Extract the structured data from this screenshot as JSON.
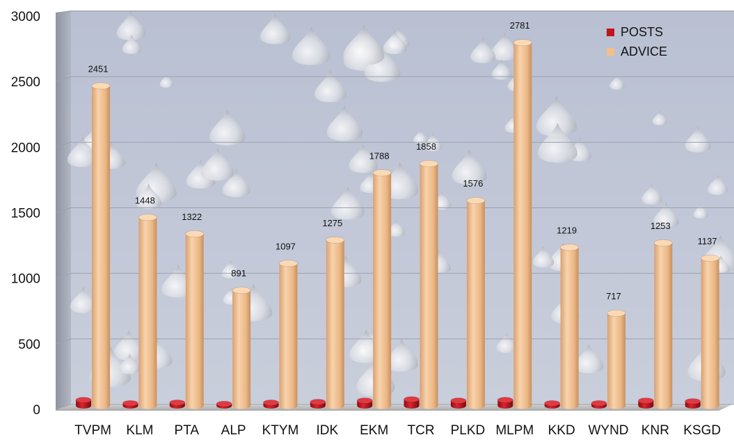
{
  "chart_data": {
    "type": "bar",
    "style": "3d-cylinder",
    "categories": [
      "TVPM",
      "KLM",
      "PTA",
      "ALP",
      "KTYM",
      "IDK",
      "EKM",
      "TCR",
      "PLKD",
      "MLPM",
      "KKD",
      "WYND",
      "KNR",
      "KSGD"
    ],
    "series": [
      {
        "name": "POSTS",
        "color": "#c0141e",
        "values": [
          55,
          30,
          35,
          25,
          35,
          40,
          50,
          60,
          50,
          55,
          30,
          30,
          50,
          45
        ],
        "show_labels": false
      },
      {
        "name": "ADVICE",
        "color": "#f2bf8c",
        "values": [
          2451,
          1448,
          1322,
          891,
          1097,
          1275,
          1788,
          1858,
          1576,
          2781,
          1219,
          717,
          1253,
          1137
        ],
        "show_labels": true
      }
    ],
    "yticks": [
      "0",
      "500",
      "1000",
      "1500",
      "2000",
      "2500",
      "3000"
    ],
    "ylim": [
      0,
      3000
    ],
    "grid": true,
    "legend_position": "top-right",
    "background": "water-drops"
  },
  "legend": {
    "posts_label": "POSTS",
    "advice_label": "ADVICE"
  }
}
